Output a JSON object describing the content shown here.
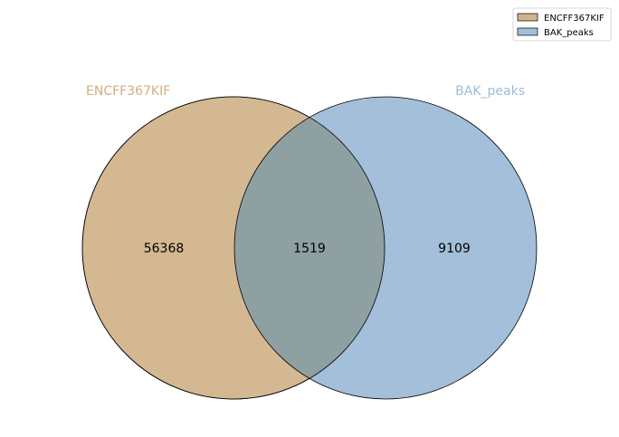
{
  "chart_data": {
    "type": "venn",
    "sets": [
      {
        "name": "ENCFF367KIF",
        "color": "#d2b48c",
        "label_color": "#d2ae80"
      },
      {
        "name": "BAK_peaks",
        "color": "#9ebcda",
        "label_color": "#9ebcda"
      }
    ],
    "regions": {
      "only_a": "56368",
      "intersection": "1519",
      "only_b": "9109"
    },
    "legend": {
      "placement": "top-right",
      "items": [
        "ENCFF367KIF",
        "BAK_peaks"
      ]
    }
  }
}
